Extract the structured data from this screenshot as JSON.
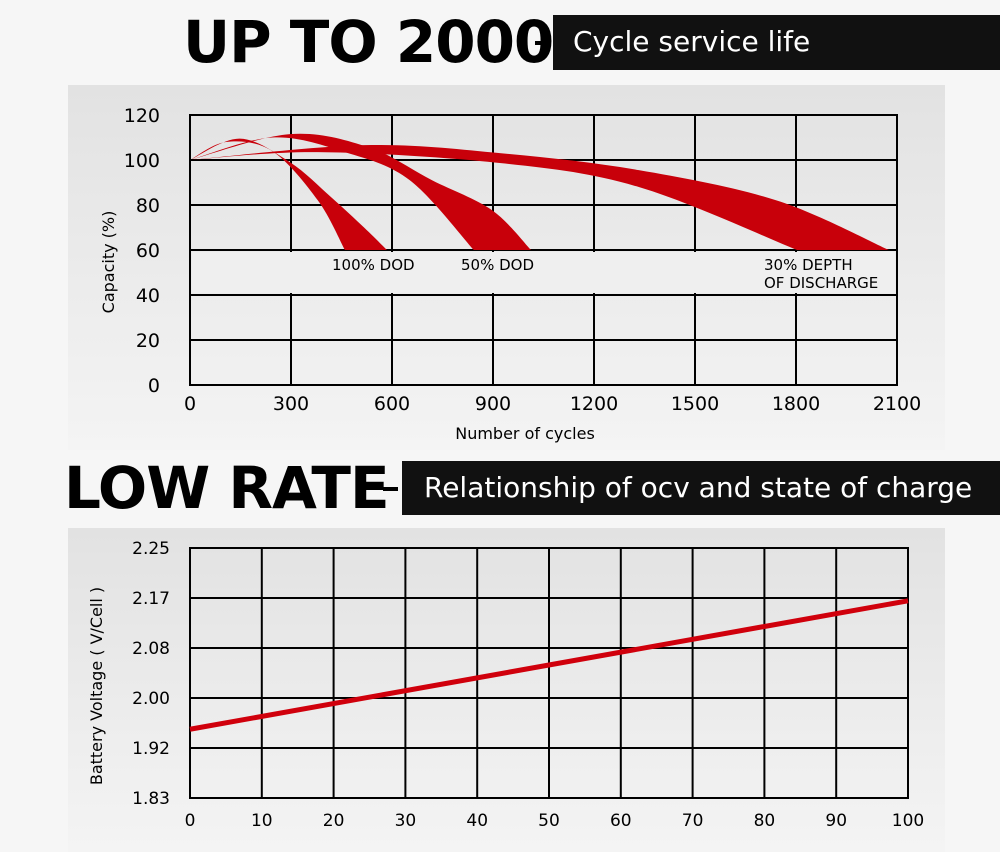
{
  "section1": {
    "headline": "UP TO 2000",
    "caption": "Cycle service life"
  },
  "section2": {
    "headline": "LOW RATE",
    "caption": "Relationship of ocv and state of charge"
  },
  "chart_data": [
    {
      "type": "area",
      "xlabel": "Number of cycles",
      "ylabel": "Capacity (%)",
      "xlim": [
        0,
        2100
      ],
      "ylim": [
        0,
        120
      ],
      "xticks": [
        "0",
        "300",
        "600",
        "900",
        "1200",
        "1500",
        "1800",
        "2100"
      ],
      "yticks": [
        "0",
        "20",
        "40",
        "60",
        "80",
        "100",
        "120"
      ],
      "grid": true,
      "color": "#c8000a",
      "series": [
        {
          "name": "100% DOD",
          "label": [
            "100% DOD"
          ],
          "upper": [
            [
              0,
              100
            ],
            [
              148,
              109.5
            ],
            [
              297,
              99
            ],
            [
              419,
              83.5
            ],
            [
              517,
              70
            ],
            [
              585,
              60
            ]
          ],
          "lower": [
            [
              0,
              100
            ],
            [
              107,
              108
            ],
            [
              244,
              104
            ],
            [
              380,
              82
            ],
            [
              460,
              60
            ]
          ]
        },
        {
          "name": "50% DOD",
          "label": [
            "50% DOD"
          ],
          "upper": [
            [
              0,
              100
            ],
            [
              297,
              111.5
            ],
            [
              529,
              105.7
            ],
            [
              719,
              91
            ],
            [
              897,
              77.7
            ],
            [
              1013,
              60
            ]
          ],
          "lower": [
            [
              0,
              100
            ],
            [
              244,
              110
            ],
            [
              460,
              103.5
            ],
            [
              653,
              91
            ],
            [
              843,
              60
            ]
          ]
        },
        {
          "name": "30% DEPTH OF DISCHARGE",
          "label": [
            "30% DEPTH",
            "OF DISCHARGE"
          ],
          "upper": [
            [
              0,
              100
            ],
            [
              517,
              106.6
            ],
            [
              924,
              103
            ],
            [
              1333,
              95.5
            ],
            [
              1743,
              82
            ],
            [
              2076,
              60
            ]
          ],
          "lower": [
            [
              0,
              100
            ],
            [
              380,
              103.5
            ],
            [
              924,
              98.6
            ],
            [
              1333,
              88
            ],
            [
              1803,
              60
            ]
          ]
        }
      ]
    },
    {
      "type": "line",
      "xlabel": "",
      "ylabel": "Battery Voltage ( V/Cell )",
      "xlim": [
        0,
        100
      ],
      "xticks": [
        "0",
        "10",
        "20",
        "30",
        "40",
        "50",
        "60",
        "70",
        "80",
        "90",
        "100"
      ],
      "yticks": [
        "1.83",
        "1.92",
        "2.00",
        "2.08",
        "2.17",
        "2.25"
      ],
      "grid": true,
      "color": "#d0000c",
      "x": [
        0,
        100
      ],
      "y": [
        1.95,
        2.165
      ]
    }
  ]
}
